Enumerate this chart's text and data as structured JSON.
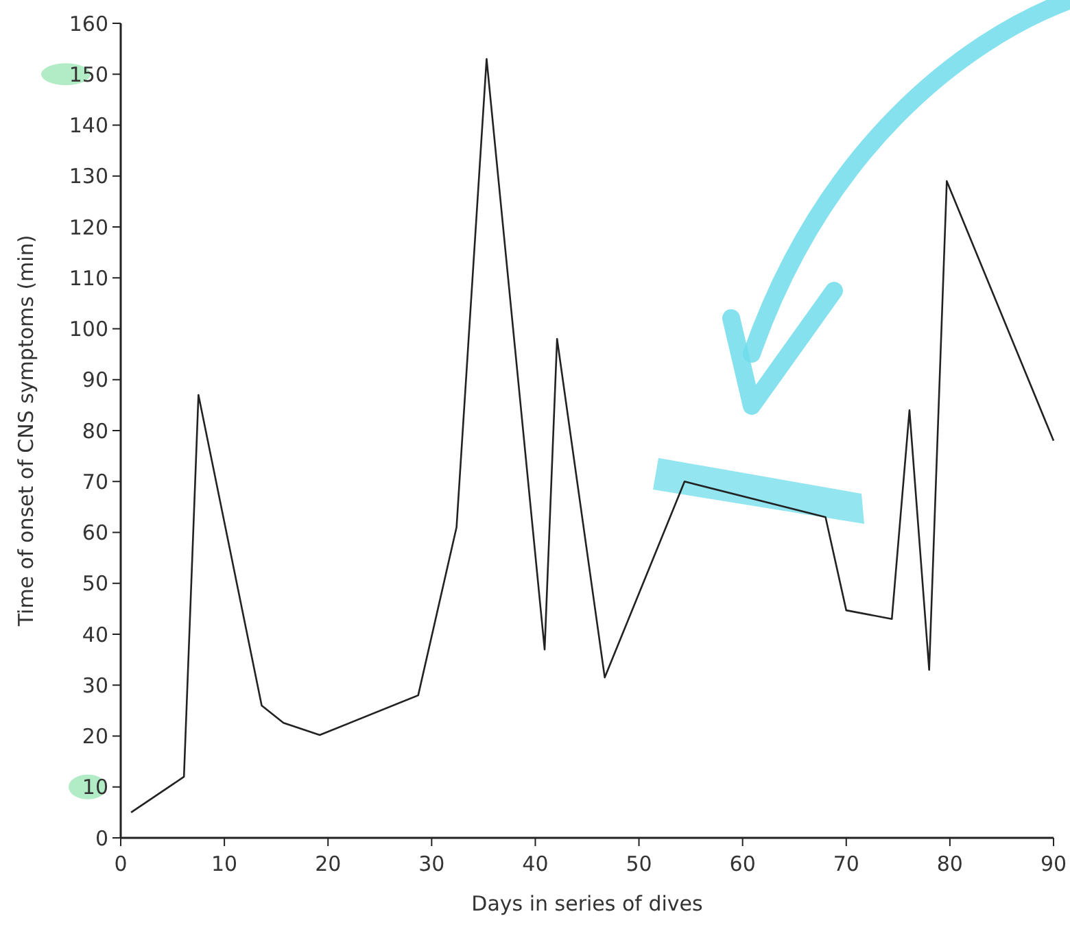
{
  "chart_data": {
    "type": "line",
    "xlabel": "Days in series of dives",
    "ylabel": "Time of onset of CNS symptoms (min)",
    "x": [
      1,
      6.1,
      7.5,
      13.6,
      15.7,
      19.2,
      28.7,
      32.4,
      35.3,
      40.9,
      42.1,
      46.7,
      54.4,
      68,
      70,
      74.4,
      76.1,
      78,
      79.7,
      90
    ],
    "series": [
      {
        "color": "#222222",
        "values": [
          5,
          12,
          87,
          26,
          22.6,
          20.2,
          28,
          61,
          153,
          37,
          98,
          31.5,
          70,
          63,
          44.7,
          43,
          84,
          33,
          129,
          78
        ]
      }
    ],
    "xlim": [
      0,
      90
    ],
    "xticks": [
      0,
      10,
      20,
      30,
      40,
      50,
      60,
      70,
      80,
      90
    ],
    "ylim": [
      0,
      160
    ],
    "yticks": [
      0,
      10,
      20,
      30,
      40,
      50,
      60,
      70,
      80,
      90,
      100,
      110,
      120,
      130,
      140,
      150,
      160
    ],
    "marker": "none",
    "line_style": "solid",
    "grid": false
  }
}
